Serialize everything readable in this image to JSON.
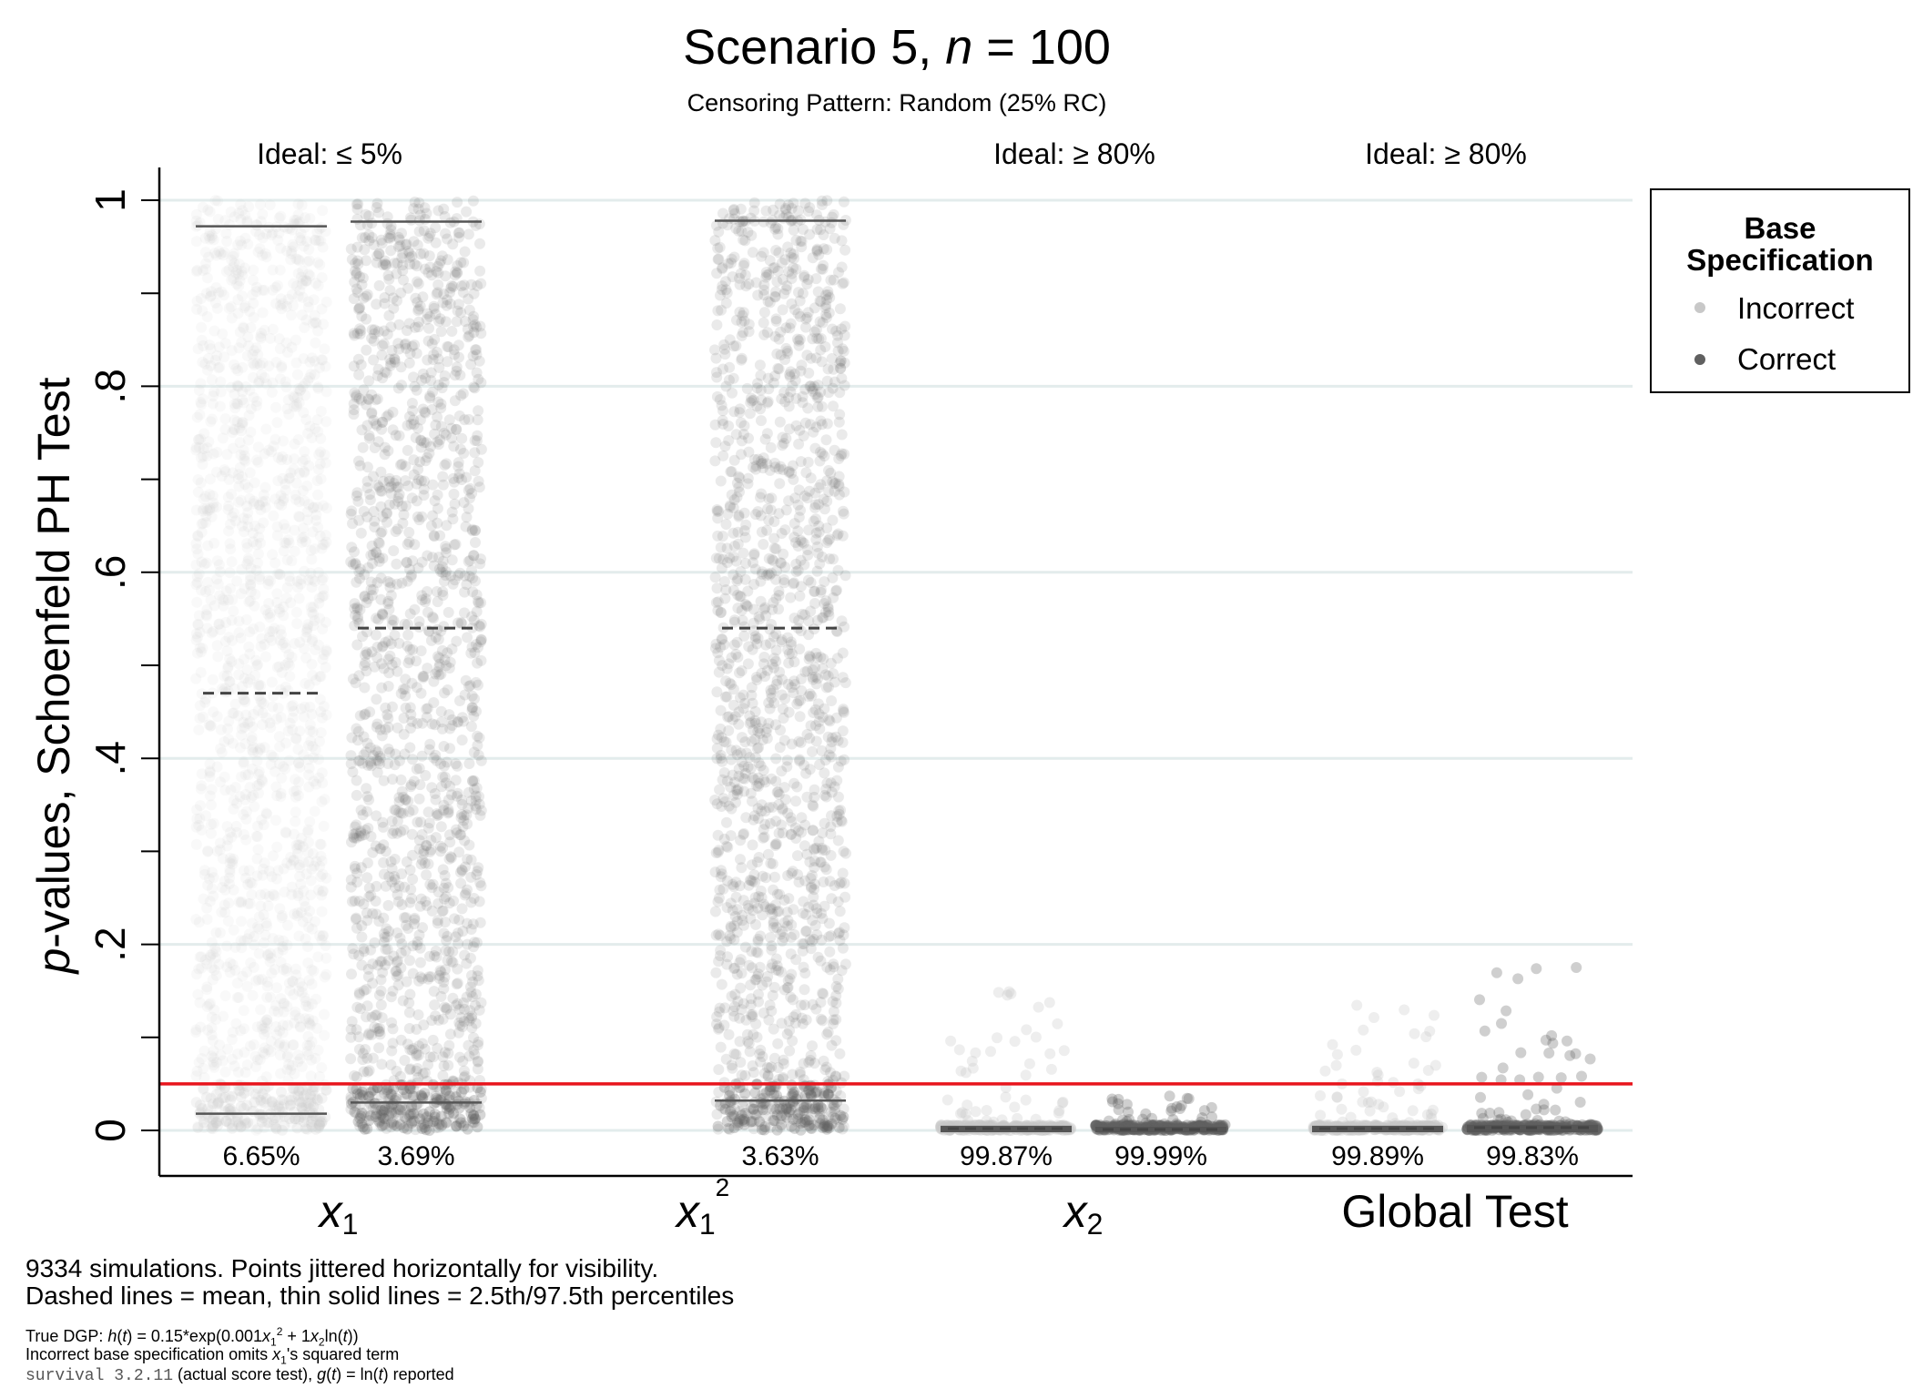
{
  "chart_data": {
    "type": "scatter",
    "title_parts": {
      "prefix": "Scenario 5, ",
      "n_symbol": "n",
      "suffix": " = 100"
    },
    "subtitle": "Censoring Pattern: Random (25% RC)",
    "ylabel_parts": {
      "italic": "p",
      "rest": "-values, Schoenfeld PH Test"
    },
    "ylim": [
      0,
      1
    ],
    "y_ticks": [
      {
        "value": 0,
        "label": "0"
      },
      {
        "value": 0.2,
        "label": ".2"
      },
      {
        "value": 0.4,
        "label": ".4"
      },
      {
        "value": 0.6,
        "label": ".6"
      },
      {
        "value": 0.8,
        "label": ".8"
      },
      {
        "value": 1,
        "label": "1"
      }
    ],
    "y_minor_step": 0.1,
    "grid": true,
    "reference_line": {
      "value": 0.05,
      "color": "#e8141c"
    },
    "groups": [
      {
        "label": "x",
        "sub": "1",
        "sup": "",
        "ideal": "Ideal: ≤ 5%"
      },
      {
        "label": "x",
        "sub": "1",
        "sup": "2",
        "ideal": ""
      },
      {
        "label": "x",
        "sub": "2",
        "sup": "",
        "ideal": "Ideal: ≥ 80%"
      },
      {
        "label": "Global Test",
        "sub": "",
        "sup": "",
        "ideal": "Ideal: ≥ 80%"
      }
    ],
    "series": [
      {
        "name": "Incorrect",
        "color": "#c8c8c8"
      },
      {
        "name": "Correct",
        "color": "#606060"
      }
    ],
    "cells": [
      {
        "group": 0,
        "series": 0,
        "distribution": "uniform",
        "mean": 0.47,
        "p025": 0.018,
        "p975": 0.972,
        "label": "6.65%"
      },
      {
        "group": 0,
        "series": 1,
        "distribution": "uniform",
        "mean": 0.54,
        "p025": 0.03,
        "p975": 0.977,
        "label": "3.69%"
      },
      {
        "group": 1,
        "series": 1,
        "distribution": "uniform",
        "mean": 0.54,
        "p025": 0.032,
        "p975": 0.978,
        "label": "3.63%"
      },
      {
        "group": 2,
        "series": 0,
        "distribution": "near-zero",
        "mean": 0.002,
        "p025": 0.0,
        "p975": 0.003,
        "max": 0.15,
        "label": "99.87%"
      },
      {
        "group": 2,
        "series": 1,
        "distribution": "near-zero",
        "mean": 0.001,
        "p025": 0.0,
        "p975": 0.002,
        "max": 0.04,
        "label": "99.99%"
      },
      {
        "group": 3,
        "series": 0,
        "distribution": "near-zero",
        "mean": 0.002,
        "p025": 0.0,
        "p975": 0.003,
        "max": 0.14,
        "label": "99.89%"
      },
      {
        "group": 3,
        "series": 1,
        "distribution": "near-zero",
        "mean": 0.003,
        "p025": 0.0,
        "p975": 0.004,
        "max": 0.18,
        "label": "99.83%"
      }
    ],
    "legend": {
      "title_line1": "Base",
      "title_line2": "Specification",
      "placement": "top-right"
    }
  },
  "notes": {
    "line1": "9334 simulations.  Points jittered horizontally for visibility.",
    "line2": "Dashed lines = mean, thin solid lines = 2.5th/97.5th percentiles",
    "dgp_label": "True DGP: ",
    "dgp_h": "h",
    "dgp_t1": "t",
    "dgp_mid1": ") = 0.15*exp(0.001",
    "dgp_x": "x",
    "dgp_sub1": "1",
    "dgp_sup2": "2",
    "dgp_mid2": " + 1",
    "dgp_x2": "x",
    "dgp_sub2": "2",
    "dgp_ln": "ln(",
    "dgp_t2": "t",
    "dgp_end": "))",
    "spec_prefix": "Incorrect base specification omits ",
    "spec_x": "x",
    "spec_sub": "1",
    "spec_suffix": "'s squared term",
    "pkg": "survival 3.2.11",
    "pkg_mid": " (actual score test), ",
    "g": "g",
    "g_t": "t",
    "g_mid": ") = ln(",
    "g_t2": "t",
    "g_end": ") reported"
  }
}
